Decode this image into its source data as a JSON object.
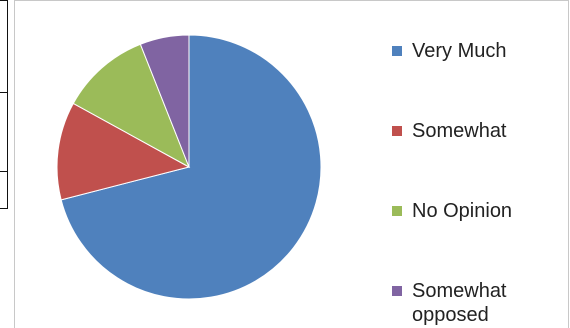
{
  "chart_data": {
    "type": "pie",
    "title": "",
    "categories": [
      "Very Much",
      "Somewhat",
      "No Opinion",
      "Somewhat opposed"
    ],
    "values": [
      71,
      12,
      11,
      6
    ],
    "colors": [
      "#4f81bd",
      "#c0504d",
      "#9bbb59",
      "#8064a2"
    ],
    "start_angle_deg": 0,
    "direction": "clockwise",
    "legend_position": "right"
  },
  "legend": {
    "items": [
      {
        "label": "Very Much",
        "color": "#4f81bd"
      },
      {
        "label": "Somewhat",
        "color": "#c0504d"
      },
      {
        "label": "No Opinion",
        "color": "#9bbb59"
      },
      {
        "label": "Somewhat opposed",
        "color": "#8064a2"
      }
    ]
  }
}
